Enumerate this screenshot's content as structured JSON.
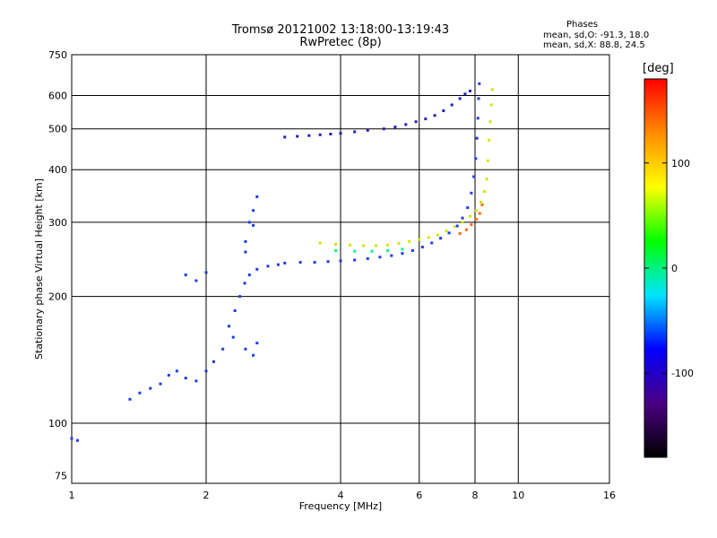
{
  "header": {
    "title_line1": "Tromsø 20121002 13:18:00-13:19:43",
    "title_line2": "RwPretec (8p)"
  },
  "phase_box": {
    "title": "Phases",
    "o_line": "mean, sd,O: -91.3, 18.0",
    "x_line": "mean, sd,X: 88.8, 24.5"
  },
  "chart_data": {
    "type": "scatter",
    "xlabel": "Frequency [MHz]",
    "ylabel": "Stationary phase Virtual Height [km]",
    "x_scale": "log",
    "y_scale": "log",
    "xlim": [
      1,
      16
    ],
    "ylim": [
      72,
      750
    ],
    "x_ticks": [
      1,
      2,
      4,
      6,
      8,
      10,
      16
    ],
    "y_ticks": [
      75,
      100,
      200,
      300,
      400,
      500,
      600,
      750
    ],
    "x_grid": [
      2,
      4,
      6,
      8,
      10
    ],
    "y_grid": [
      100,
      200,
      300,
      400,
      500,
      600
    ],
    "colorbar": {
      "label": "[deg]",
      "ticks": [
        -100,
        0,
        100
      ],
      "range": [
        -180,
        180
      ],
      "colors": [
        "#000000",
        "#4b0082",
        "#0000ff",
        "#00e5ff",
        "#00ff00",
        "#ffff00",
        "#ff8c00",
        "#ff0000"
      ]
    },
    "series": [
      {
        "values": [
          [
            1.0,
            92
          ],
          [
            1.03,
            91
          ],
          [
            1.35,
            114
          ],
          [
            1.42,
            118
          ],
          [
            1.5,
            121
          ],
          [
            1.58,
            124
          ],
          [
            1.65,
            130
          ],
          [
            1.72,
            133
          ],
          [
            1.8,
            128
          ],
          [
            1.9,
            126
          ],
          [
            2.0,
            133
          ],
          [
            2.08,
            140
          ],
          [
            2.18,
            150
          ],
          [
            2.25,
            170
          ],
          [
            2.32,
            185
          ],
          [
            2.38,
            200
          ],
          [
            2.44,
            215
          ],
          [
            2.5,
            225
          ],
          [
            2.6,
            232
          ],
          [
            2.75,
            236
          ],
          [
            2.9,
            238
          ],
          [
            3.0,
            240
          ],
          [
            3.25,
            241
          ],
          [
            3.5,
            241
          ],
          [
            3.75,
            242
          ],
          [
            4.0,
            243
          ],
          [
            4.3,
            244
          ],
          [
            4.6,
            246
          ],
          [
            4.9,
            248
          ],
          [
            5.2,
            250
          ],
          [
            5.5,
            253
          ],
          [
            5.8,
            257
          ],
          [
            6.1,
            262
          ],
          [
            6.4,
            268
          ],
          [
            6.7,
            275
          ],
          [
            7.0,
            283
          ],
          [
            7.3,
            294
          ],
          [
            7.5,
            307
          ],
          [
            7.7,
            325
          ],
          [
            7.85,
            352
          ],
          [
            7.95,
            385
          ],
          [
            8.03,
            425
          ],
          [
            8.08,
            475
          ],
          [
            8.12,
            530
          ],
          [
            8.15,
            590
          ],
          [
            8.18,
            640
          ],
          [
            1.8,
            225
          ],
          [
            1.9,
            218
          ],
          [
            2.0,
            228
          ],
          [
            2.45,
            270
          ],
          [
            2.5,
            300
          ],
          [
            2.55,
            320
          ],
          [
            2.6,
            345
          ],
          [
            2.55,
            295
          ],
          [
            2.45,
            255
          ],
          [
            2.3,
            160
          ],
          [
            2.45,
            150
          ],
          [
            2.55,
            145
          ],
          [
            2.6,
            155
          ]
        ],
        "color": "#1e3ce6"
      },
      {
        "values": [
          [
            3.0,
            478
          ],
          [
            3.2,
            480
          ],
          [
            3.4,
            482
          ],
          [
            3.6,
            484
          ],
          [
            3.8,
            486
          ],
          [
            4.0,
            488
          ],
          [
            4.3,
            492
          ],
          [
            4.6,
            496
          ],
          [
            5.0,
            500
          ],
          [
            5.3,
            505
          ],
          [
            5.6,
            512
          ],
          [
            5.9,
            520
          ],
          [
            6.2,
            528
          ],
          [
            6.5,
            538
          ],
          [
            6.8,
            552
          ],
          [
            7.1,
            570
          ],
          [
            7.4,
            590
          ],
          [
            7.6,
            605
          ],
          [
            7.8,
            615
          ]
        ],
        "color": "#2020b4"
      },
      {
        "values": [
          [
            3.6,
            268
          ],
          [
            3.9,
            266
          ],
          [
            4.2,
            265
          ],
          [
            4.5,
            264
          ],
          [
            4.8,
            264
          ],
          [
            5.1,
            265
          ],
          [
            5.4,
            267
          ],
          [
            5.7,
            270
          ],
          [
            6.0,
            273
          ],
          [
            6.3,
            276
          ],
          [
            6.6,
            280
          ],
          [
            6.9,
            286
          ],
          [
            7.2,
            293
          ],
          [
            7.5,
            300
          ],
          [
            7.8,
            310
          ],
          [
            8.05,
            320
          ],
          [
            8.25,
            335
          ],
          [
            8.4,
            355
          ],
          [
            8.5,
            380
          ],
          [
            8.55,
            420
          ],
          [
            8.6,
            470
          ],
          [
            8.65,
            520
          ],
          [
            8.7,
            570
          ],
          [
            8.75,
            620
          ]
        ],
        "color": "#d2e600"
      },
      {
        "values": [
          [
            7.4,
            282
          ],
          [
            7.65,
            288
          ],
          [
            7.85,
            296
          ],
          [
            8.05,
            305
          ],
          [
            8.2,
            315
          ],
          [
            8.3,
            330
          ]
        ],
        "color": "#ff6a00"
      },
      {
        "values": [
          [
            3.9,
            257
          ],
          [
            4.3,
            256
          ],
          [
            4.7,
            256
          ],
          [
            5.1,
            257
          ],
          [
            5.5,
            259
          ]
        ],
        "color": "#00ff80"
      }
    ]
  }
}
